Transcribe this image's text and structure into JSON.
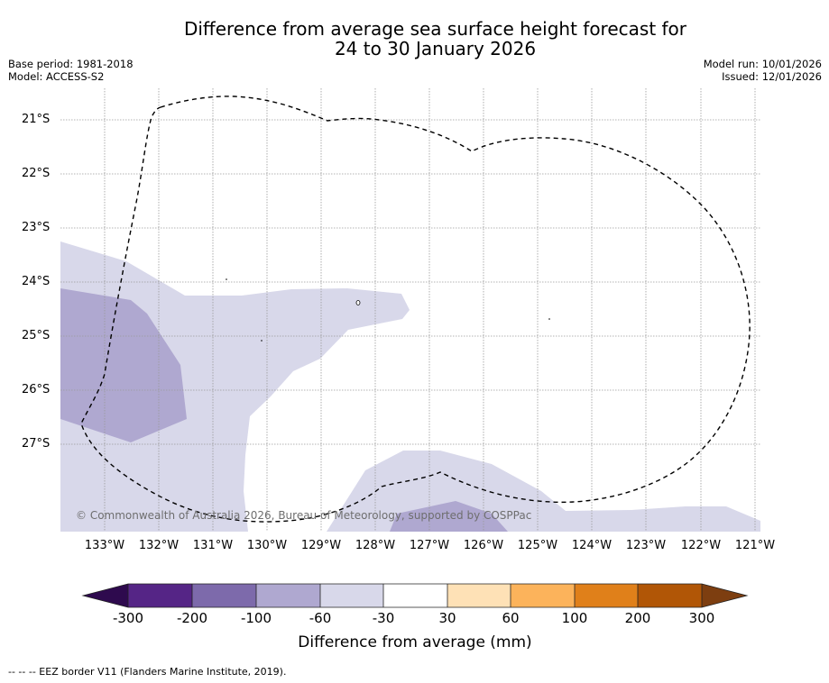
{
  "header": {
    "title_line1": "Difference from average sea surface height forecast for",
    "title_line2": "24 to 30 January 2026",
    "base_period": "Base period: 1981-2018",
    "model": "Model: ACCESS-S2",
    "model_run": "Model run: 10/01/2026",
    "issued": "Issued: 12/01/2026"
  },
  "map": {
    "latitude_labels": [
      "21°S",
      "22°S",
      "23°S",
      "24°S",
      "25°S",
      "26°S",
      "27°S"
    ],
    "longitude_labels": [
      "133°W",
      "132°W",
      "131°W",
      "130°W",
      "129°W",
      "128°W",
      "127°W",
      "126°W",
      "125°W",
      "124°W",
      "123°W",
      "122°W",
      "121°W"
    ],
    "copyright": "© Commonwealth of Australia 2026, Bureau of Meteorology, supported by COSPPac"
  },
  "colorbar": {
    "title": "Difference from average (mm)",
    "ticks": [
      "-300",
      "-200",
      "-100",
      "-60",
      "-30",
      "30",
      "60",
      "100",
      "200",
      "300"
    ],
    "colors": {
      "below_min": "#2e0a4e",
      "bins": [
        "#552586",
        "#7d6aab",
        "#afa8d0",
        "#d8d8ea",
        "#ffffff",
        "#fee1b6",
        "#fcb35b",
        "#e0801a",
        "#b15606"
      ],
      "above_max": "#7d3e10"
    }
  },
  "footnote": "--  --  -- EEZ border V11 (Flanders Marine Institute, 2019)."
}
